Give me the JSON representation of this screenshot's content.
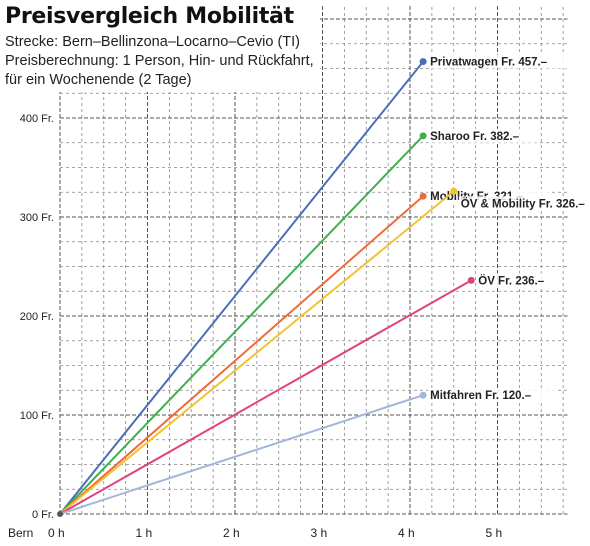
{
  "title": "Preisvergleich Mobilität",
  "subtitle_lines": [
    "Strecke: Bern–Bellinzona–Locarno–Cevio (TI)",
    "Preisberechnung: 1 Person, Hin- und Rückfahrt,",
    "für ein Wochenende (2 Tage)"
  ],
  "chart_data": {
    "type": "line",
    "title": "Preisvergleich Mobilität",
    "x_axis": {
      "origin_label": "Bern",
      "range_hours": [
        0,
        5.8
      ],
      "ticks": [
        0,
        1,
        2,
        3,
        4,
        5
      ],
      "tick_labels": [
        "0 h",
        "1 h",
        "2 h",
        "3 h",
        "4 h",
        "5 h"
      ]
    },
    "y_axis": {
      "range_chf": [
        0,
        500
      ],
      "ticks": [
        0,
        100,
        200,
        300,
        400
      ],
      "tick_labels": [
        "0 Fr.",
        "100 Fr.",
        "200 Fr.",
        "300 Fr.",
        "400 Fr."
      ]
    },
    "grid": true,
    "series": [
      {
        "name": "Privatwagen",
        "label": "Privatwagen Fr. 457.–",
        "color": "#4a6fb8",
        "points": [
          {
            "x": 0,
            "y": 0
          },
          {
            "x": 4.15,
            "y": 457
          }
        ]
      },
      {
        "name": "Sharoo",
        "label": "Sharoo Fr. 382.–",
        "color": "#3faf4c",
        "points": [
          {
            "x": 0,
            "y": 0
          },
          {
            "x": 4.15,
            "y": 382
          }
        ]
      },
      {
        "name": "Mobility",
        "label": "Mobility Fr. 321.–",
        "color": "#ef6a3c",
        "points": [
          {
            "x": 0,
            "y": 0
          },
          {
            "x": 4.15,
            "y": 321
          }
        ]
      },
      {
        "name": "ÖV & Mobility",
        "label": "ÖV & Mobility Fr. 326.–",
        "color": "#f1c232",
        "points": [
          {
            "x": 0,
            "y": 0
          },
          {
            "x": 4.5,
            "y": 326
          }
        ]
      },
      {
        "name": "ÖV",
        "label": "ÖV Fr. 236.–",
        "color": "#e2407e",
        "points": [
          {
            "x": 0,
            "y": 0
          },
          {
            "x": 4.7,
            "y": 236
          }
        ]
      },
      {
        "name": "Mitfahren",
        "label": "Mitfahren Fr. 120.–",
        "color": "#9fb8d8",
        "points": [
          {
            "x": 0,
            "y": 0
          },
          {
            "x": 4.15,
            "y": 120
          }
        ]
      }
    ]
  }
}
